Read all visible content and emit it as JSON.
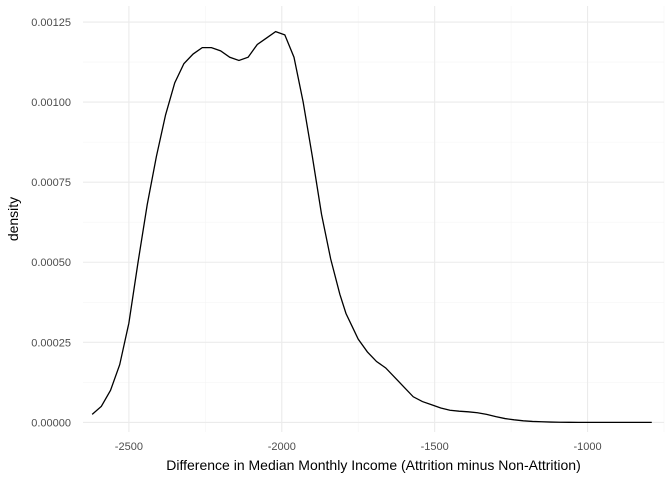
{
  "chart_data": {
    "type": "line",
    "subtype": "density",
    "xlabel": "Difference in Median Monthly Income (Attrition minus Non-Attrition)",
    "ylabel": "density",
    "xlim": [
      -2650,
      -750
    ],
    "ylim": [
      -3e-05,
      0.0013
    ],
    "x_ticks": [
      -2500,
      -2000,
      -1500,
      -1000
    ],
    "x_tick_labels": [
      "-2500",
      "-2000",
      "-1500",
      "-1000"
    ],
    "y_ticks": [
      0,
      0.00025,
      0.0005,
      0.00075,
      0.001,
      0.00125
    ],
    "y_tick_labels": [
      "0.00000",
      "0.00025",
      "0.00050",
      "0.00075",
      "0.00100",
      "0.00125"
    ],
    "grid": true,
    "legend": "none",
    "line_color": "#000000",
    "grid_major_color": "#ebebeb",
    "grid_minor_color": "#f5f5f5",
    "series": [
      {
        "x": [
          -2620,
          -2590,
          -2560,
          -2530,
          -2500,
          -2470,
          -2440,
          -2410,
          -2380,
          -2350,
          -2320,
          -2290,
          -2260,
          -2230,
          -2200,
          -2170,
          -2140,
          -2110,
          -2080,
          -2050,
          -2020,
          -1990,
          -1960,
          -1930,
          -1900,
          -1870,
          -1840,
          -1810,
          -1790,
          -1770,
          -1750,
          -1720,
          -1690,
          -1660,
          -1630,
          -1600,
          -1570,
          -1540,
          -1510,
          -1480,
          -1450,
          -1420,
          -1390,
          -1360,
          -1330,
          -1300,
          -1270,
          -1240,
          -1210,
          -1180,
          -1150,
          -1120,
          -1090,
          -1060,
          -1030,
          -1000,
          -970,
          -940,
          -910,
          -880,
          -850,
          -820,
          -790
        ],
        "y": [
          2.5e-05,
          5e-05,
          0.0001,
          0.00018,
          0.00031,
          0.0005,
          0.00068,
          0.00083,
          0.00096,
          0.00106,
          0.00112,
          0.00115,
          0.00117,
          0.00117,
          0.00116,
          0.00114,
          0.00113,
          0.00114,
          0.00118,
          0.0012,
          0.00122,
          0.00121,
          0.00114,
          0.001,
          0.00083,
          0.00065,
          0.00051,
          0.0004,
          0.00034,
          0.0003,
          0.00026,
          0.00022,
          0.00019,
          0.00017,
          0.00014,
          0.00011,
          8e-05,
          6.5e-05,
          5.5e-05,
          4.5e-05,
          3.8e-05,
          3.5e-05,
          3.3e-05,
          3e-05,
          2.5e-05,
          1.8e-05,
          1.2e-05,
          8e-06,
          5e-06,
          3e-06,
          2e-06,
          1e-06,
          5e-07,
          2e-07,
          1e-07,
          0,
          0,
          0,
          0,
          0,
          0,
          0,
          0
        ]
      }
    ]
  }
}
